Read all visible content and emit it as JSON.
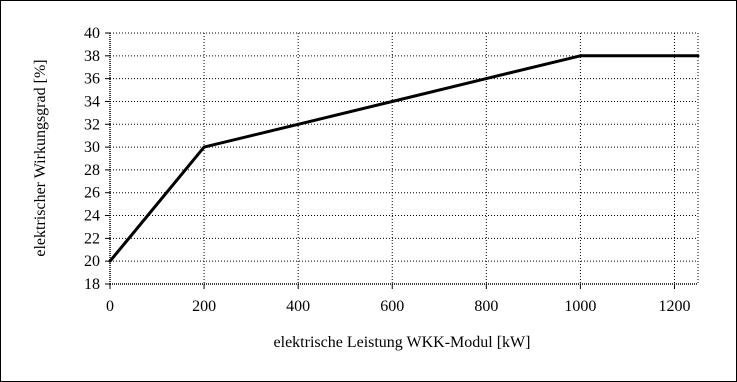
{
  "chart_data": {
    "type": "line",
    "title": "",
    "xlabel": "elektrische  Leistung  WKK-Modul  [kW]",
    "ylabel": "elektrischer  Wirkungsgrad  [%]",
    "xlim": [
      0,
      1250
    ],
    "ylim": [
      18,
      40
    ],
    "x_ticks": [
      0,
      200,
      400,
      600,
      800,
      1000,
      1200
    ],
    "y_ticks": [
      18,
      20,
      22,
      24,
      26,
      28,
      30,
      32,
      34,
      36,
      38,
      40
    ],
    "grid": true,
    "legend": "none",
    "series": [
      {
        "color": "#000000",
        "x": [
          0,
          200,
          400,
          600,
          800,
          1000,
          1250
        ],
        "values": [
          20,
          30,
          32,
          34,
          36,
          38,
          38
        ]
      }
    ]
  },
  "colors": {
    "line": "#000000",
    "grid": "#000000",
    "background": "#ffffff"
  }
}
